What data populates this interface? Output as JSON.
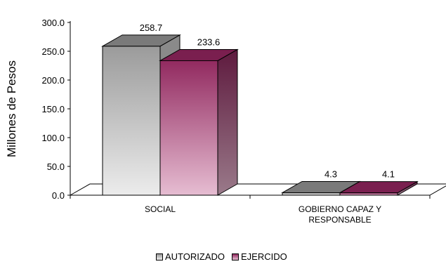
{
  "chart_data": {
    "type": "bar",
    "ylabel": "Millones de Pesos",
    "ylim": [
      0,
      300
    ],
    "yticks": [
      "0.0",
      "50.0",
      "100.0",
      "150.0",
      "200.0",
      "250.0",
      "300.0"
    ],
    "categories": [
      [
        "SOCIAL"
      ],
      [
        "GOBIERNO CAPAZ Y",
        "RESPONSABLE"
      ]
    ],
    "series": [
      {
        "name": "AUTORIZADO",
        "values": [
          258.7,
          4.3
        ],
        "labels": [
          "258.7",
          "4.3"
        ],
        "color": "#9a9a9a"
      },
      {
        "name": "EJERCIDO",
        "values": [
          233.6,
          4.1
        ],
        "labels": [
          "233.6",
          "4.1"
        ],
        "color": "#8e2a5e"
      }
    ],
    "grid": false,
    "legend_position": "bottom"
  }
}
